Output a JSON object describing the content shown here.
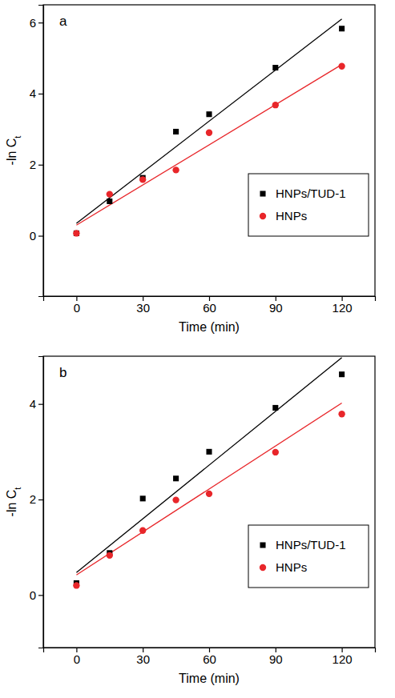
{
  "chart_data": [
    {
      "type": "scatter",
      "title": "a",
      "x_label": "Time (min)",
      "y_label": "-ln Ct",
      "x": [
        0,
        15,
        30,
        45,
        60,
        90,
        120
      ],
      "xlim": [
        -15,
        135
      ],
      "xticks": [
        0,
        30,
        60,
        90,
        120
      ],
      "ylim": [
        -1.7,
        6.5
      ],
      "yticks": [
        0,
        2,
        4,
        6
      ],
      "legend": "lower right",
      "series": [
        {
          "name": "HNPs/TUD-1",
          "color": "#000000",
          "marker": "square",
          "values": [
            0.07,
            0.97,
            1.63,
            2.93,
            3.42,
            4.73,
            5.83
          ],
          "fit": {
            "x": [
              0,
              120
            ],
            "values": [
              0.35,
              6.1
            ]
          }
        },
        {
          "name": "HNPs",
          "color": "#e8262a",
          "marker": "circle",
          "values": [
            0.07,
            1.17,
            1.58,
            1.85,
            2.9,
            3.68,
            4.77
          ],
          "fit": {
            "x": [
              0,
              120
            ],
            "values": [
              0.3,
              4.82
            ]
          }
        }
      ]
    },
    {
      "type": "scatter",
      "title": "b",
      "x_label": "Time (min)",
      "y_label": "-ln Ct",
      "x": [
        0,
        15,
        30,
        45,
        60,
        90,
        120
      ],
      "xlim": [
        -15,
        135
      ],
      "xticks": [
        0,
        30,
        60,
        90,
        120
      ],
      "ylim": [
        -1.1,
        5.0
      ],
      "yticks": [
        0,
        2,
        4
      ],
      "legend": "lower right",
      "series": [
        {
          "name": "HNPs/TUD-1",
          "color": "#000000",
          "marker": "square",
          "values": [
            0.25,
            0.88,
            2.02,
            2.44,
            3.0,
            3.92,
            4.62
          ],
          "fit": {
            "x": [
              0,
              120
            ],
            "values": [
              0.47,
              4.97
            ]
          }
        },
        {
          "name": "HNPs",
          "color": "#e8262a",
          "marker": "circle",
          "values": [
            0.2,
            0.83,
            1.35,
            1.99,
            2.12,
            2.99,
            3.79
          ],
          "fit": {
            "x": [
              0,
              120
            ],
            "values": [
              0.42,
              4.02
            ]
          }
        }
      ]
    }
  ]
}
